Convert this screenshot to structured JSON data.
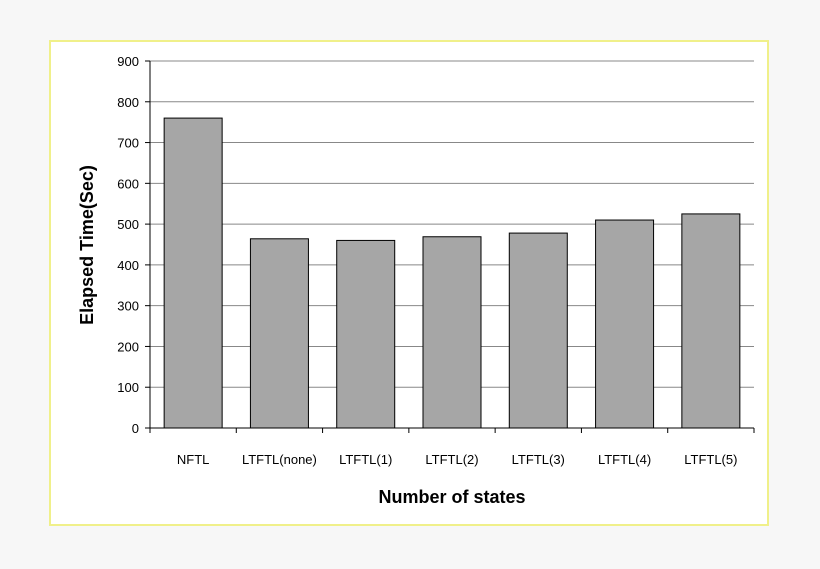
{
  "chart_data": {
    "type": "bar",
    "title": "",
    "xlabel": "Number of states",
    "ylabel": "Elapsed Time(Sec)",
    "categories": [
      "NFTL",
      "LTFTL(none)",
      "LTFTL(1)",
      "LTFTL(2)",
      "LTFTL(3)",
      "LTFTL(4)",
      "LTFTL(5)"
    ],
    "values": [
      760,
      464,
      460,
      469,
      478,
      510,
      525
    ],
    "ylim": [
      0,
      900
    ],
    "yticks": [
      0,
      100,
      200,
      300,
      400,
      500,
      600,
      700,
      800,
      900
    ],
    "grid": true,
    "legend": "none",
    "colors": {
      "bar_fill": "#a6a6a6",
      "bar_stroke": "#000000",
      "grid": "#888888",
      "frame_border": "#f0f08a",
      "page_background": "#f7f7f7"
    }
  }
}
